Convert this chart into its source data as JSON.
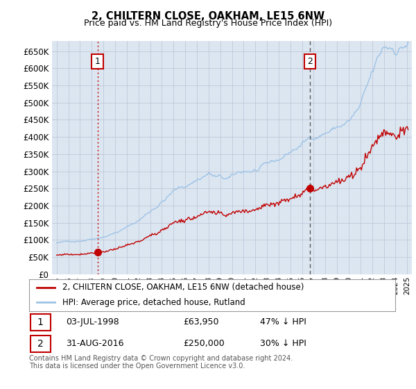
{
  "title": "2, CHILTERN CLOSE, OAKHAM, LE15 6NW",
  "subtitle": "Price paid vs. HM Land Registry's House Price Index (HPI)",
  "ylabel_ticks": [
    "£0",
    "£50K",
    "£100K",
    "£150K",
    "£200K",
    "£250K",
    "£300K",
    "£350K",
    "£400K",
    "£450K",
    "£500K",
    "£550K",
    "£600K",
    "£650K"
  ],
  "ytick_values": [
    0,
    50000,
    100000,
    150000,
    200000,
    250000,
    300000,
    350000,
    400000,
    450000,
    500000,
    550000,
    600000,
    650000
  ],
  "ylim": [
    0,
    680000
  ],
  "xlim_start": 1994.6,
  "xlim_end": 2025.4,
  "xtick_years": [
    1995,
    1996,
    1997,
    1998,
    1999,
    2000,
    2001,
    2002,
    2003,
    2004,
    2005,
    2006,
    2007,
    2008,
    2009,
    2010,
    2011,
    2012,
    2013,
    2014,
    2015,
    2016,
    2017,
    2018,
    2019,
    2020,
    2021,
    2022,
    2023,
    2024,
    2025
  ],
  "hpi_color": "#4472c4",
  "hpi_color_light": "#9dc3e6",
  "price_color": "#c00000",
  "chart_bg": "#dce6f1",
  "transaction1_x": 1998.5,
  "transaction1_y": 63950,
  "transaction2_x": 2016.67,
  "transaction2_y": 250000,
  "vline1_color": "#c00000",
  "vline2_color": "#595959",
  "legend_label_price": "2, CHILTERN CLOSE, OAKHAM, LE15 6NW (detached house)",
  "legend_label_hpi": "HPI: Average price, detached house, Rutland",
  "table_row1": [
    "1",
    "03-JUL-1998",
    "£63,950",
    "47% ↓ HPI"
  ],
  "table_row2": [
    "2",
    "31-AUG-2016",
    "£250,000",
    "30% ↓ HPI"
  ],
  "footnote": "Contains HM Land Registry data © Crown copyright and database right 2024.\nThis data is licensed under the Open Government Licence v3.0.",
  "background_color": "#ffffff",
  "grid_color": "#c0c8d8"
}
